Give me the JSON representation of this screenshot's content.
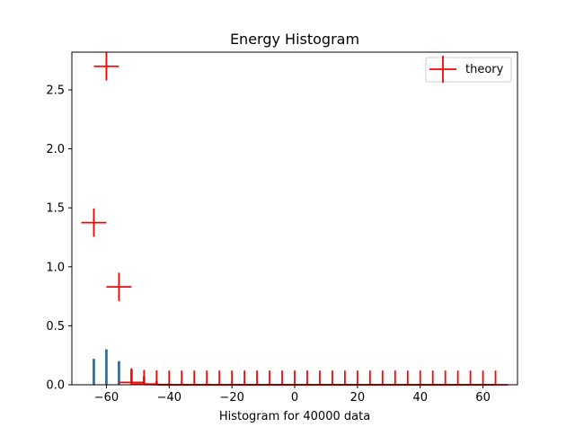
{
  "chart_data": {
    "type": "bar",
    "title": "Energy Histogram",
    "xlabel": "Histogram for 40000 data",
    "ylabel": "",
    "xlim": [
      -71,
      71
    ],
    "ylim": [
      0,
      2.82
    ],
    "grid": false,
    "legend_position": "top-right",
    "xticks": [
      -60,
      -40,
      -20,
      0,
      20,
      40,
      60
    ],
    "xtick_labels": [
      "−60",
      "−40",
      "−20",
      "0",
      "20",
      "40",
      "60"
    ],
    "yticks": [
      0.0,
      0.5,
      1.0,
      1.5,
      2.0,
      2.5
    ],
    "ytick_labels": [
      "0.0",
      "0.5",
      "1.0",
      "1.5",
      "2.0",
      "2.5"
    ],
    "histogram": {
      "color": "#1f77b4",
      "bar_width": 0.8,
      "x": [
        -64,
        -60,
        -56,
        -52,
        -48,
        -44,
        -40
      ],
      "values": [
        0.22,
        0.3,
        0.2,
        0.13,
        0.07,
        0.03,
        0.01
      ]
    },
    "theory": {
      "name": "theory",
      "color": "#ff0000",
      "x": [
        -64,
        -60,
        -56,
        -52,
        -48,
        -44,
        -40,
        -36,
        -32,
        -28,
        -24,
        -20,
        -16,
        -12,
        -8,
        -4,
        0,
        4,
        8,
        12,
        16,
        20,
        24,
        28,
        32,
        36,
        40,
        44,
        48,
        52,
        56,
        60,
        64
      ],
      "y": [
        1.375,
        2.7,
        0.83,
        0.02,
        0.006,
        0.002,
        0,
        0,
        0,
        0,
        0,
        0,
        0,
        0,
        0,
        0,
        0,
        0,
        0,
        0,
        0,
        0,
        0,
        0,
        0,
        0,
        0,
        0,
        0,
        0,
        0,
        0,
        0
      ],
      "yerr": [
        0.12,
        0.12,
        0.12,
        0.12,
        0.12,
        0.12,
        0.12,
        0.12,
        0.12,
        0.12,
        0.12,
        0.12,
        0.12,
        0.12,
        0.12,
        0.12,
        0.12,
        0.12,
        0.12,
        0.12,
        0.12,
        0.12,
        0.12,
        0.12,
        0.12,
        0.12,
        0.12,
        0.12,
        0.12,
        0.12,
        0.12,
        0.12,
        0.12
      ],
      "xerr": 4
    }
  }
}
